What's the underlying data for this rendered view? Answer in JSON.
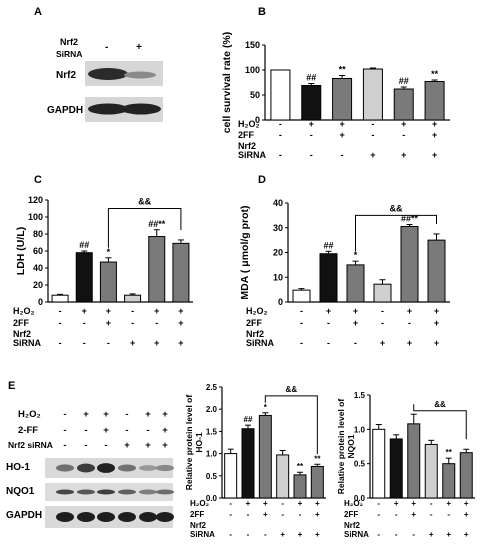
{
  "colors": {
    "white": "#ffffff",
    "black": "#111111",
    "dark_gray": "#7a7a7a",
    "light_gray": "#cfcfcf",
    "mid_gray": "#8c8c8c"
  },
  "blot_a": {
    "label": "A",
    "header": {
      "line1": "Nrf2",
      "line2": "SiRNA",
      "minus": "-",
      "plus": "+"
    },
    "rows": [
      "Nrf2",
      "GAPDH"
    ]
  },
  "blot_e": {
    "label": "E",
    "conditions": [
      {
        "name": "H₂O₂",
        "signs": [
          "-",
          "+",
          "+",
          "-",
          "+",
          "+"
        ]
      },
      {
        "name": "2-FF",
        "signs": [
          "-",
          "-",
          "+",
          "-",
          "-",
          "+"
        ]
      },
      {
        "name": "Nrf2 siRNA",
        "signs": [
          "-",
          "-",
          "-",
          "+",
          "+",
          "+"
        ]
      }
    ],
    "rows": [
      "HO-1",
      "NQO1",
      "GAPDH"
    ]
  },
  "chart_data": [
    {
      "panel": "B",
      "type": "bar",
      "categories": [
        "1",
        "2",
        "3",
        "4",
        "5",
        "6"
      ],
      "values": [
        100,
        69,
        83,
        102,
        62,
        77
      ],
      "errors": [
        0,
        4,
        6,
        2,
        4,
        3
      ],
      "sig": [
        "",
        "##",
        "**",
        "",
        "##",
        "**"
      ],
      "ylabel": "cell survival rate (%)",
      "ylim": [
        0,
        150
      ],
      "yticks": [
        "0",
        "50",
        "100",
        "150"
      ],
      "conditions": [
        {
          "name": "H₂O₂",
          "signs": [
            "-",
            "+",
            "+",
            "-",
            "+",
            "+"
          ]
        },
        {
          "name": "2FF",
          "signs": [
            "-",
            "-",
            "+",
            "-",
            "-",
            "+"
          ]
        },
        {
          "name": "Nrf2",
          "signs": []
        },
        {
          "name": "SiRNA",
          "signs": [
            "-",
            "-",
            "-",
            "+",
            "+",
            "+"
          ]
        }
      ],
      "bar_colors": [
        "#ffffff",
        "#111111",
        "#7a7a7a",
        "#cfcfcf",
        "#7a7a7a",
        "#7a7a7a"
      ]
    },
    {
      "panel": "C",
      "type": "bar",
      "categories": [
        "1",
        "2",
        "3",
        "4",
        "5",
        "6"
      ],
      "values": [
        8,
        58,
        47,
        8,
        77,
        69
      ],
      "errors": [
        1,
        2,
        5,
        1.5,
        8,
        4
      ],
      "sig": [
        "",
        "##",
        "*",
        "",
        "##**",
        ""
      ],
      "bracket": {
        "from": 2,
        "to": 5,
        "label": "&&",
        "y": 110
      },
      "ylabel": "LDH  (U/L)",
      "ylim": [
        0,
        120
      ],
      "yticks": [
        "0",
        "20",
        "40",
        "60",
        "80",
        "100",
        "120"
      ],
      "conditions": [
        {
          "name": "H₂O₂",
          "signs": [
            "-",
            "+",
            "+",
            "-",
            "+",
            "+"
          ]
        },
        {
          "name": "2FF",
          "signs": [
            "-",
            "-",
            "+",
            "-",
            "-",
            "+"
          ]
        },
        {
          "name": "Nrf2",
          "signs": []
        },
        {
          "name": "SiRNA",
          "signs": [
            "-",
            "-",
            "-",
            "+",
            "+",
            "+"
          ]
        }
      ],
      "bar_colors": [
        "#ffffff",
        "#111111",
        "#7a7a7a",
        "#cfcfcf",
        "#7a7a7a",
        "#7a7a7a"
      ]
    },
    {
      "panel": "D",
      "type": "bar",
      "categories": [
        "1",
        "2",
        "3",
        "4",
        "5",
        "6"
      ],
      "values": [
        4.8,
        19.5,
        15,
        7.2,
        30.5,
        25
      ],
      "errors": [
        0.6,
        1.0,
        1.5,
        1.8,
        0.8,
        2.5
      ],
      "sig": [
        "",
        "##",
        "*",
        "",
        "##**",
        ""
      ],
      "bracket": {
        "from": 2,
        "to": 5,
        "label": "&&",
        "y": 35
      },
      "ylabel": "MDA ( μmol/g prot)",
      "ylim": [
        0,
        40
      ],
      "yticks": [
        "0",
        "10",
        "20",
        "30",
        "40"
      ],
      "conditions": [
        {
          "name": "H₂O₂",
          "signs": [
            "-",
            "+",
            "+",
            "-",
            "+",
            "+"
          ]
        },
        {
          "name": "2FF",
          "signs": [
            "-",
            "-",
            "+",
            "-",
            "-",
            "+"
          ]
        },
        {
          "name": "Nrf2",
          "signs": []
        },
        {
          "name": "SiRNA",
          "signs": [
            "-",
            "-",
            "-",
            "+",
            "+",
            "+"
          ]
        }
      ],
      "bar_colors": [
        "#ffffff",
        "#111111",
        "#7a7a7a",
        "#cfcfcf",
        "#7a7a7a",
        "#7a7a7a"
      ]
    },
    {
      "panel": "E-HO1",
      "type": "bar",
      "categories": [
        "1",
        "2",
        "3",
        "4",
        "5",
        "6"
      ],
      "values": [
        1.0,
        1.56,
        1.86,
        0.97,
        0.52,
        0.71
      ],
      "errors": [
        0.1,
        0.08,
        0.06,
        0.1,
        0.06,
        0.05
      ],
      "sig": [
        "",
        "##",
        "*",
        "",
        "**",
        "**"
      ],
      "bracket": {
        "from": 2,
        "to": 5,
        "label": "&&",
        "y": 2.3
      },
      "ylabel": "Relative protein level of HO-1",
      "ylim": [
        0,
        2.5
      ],
      "yticks": [
        "0.0",
        "0.5",
        "1.0",
        "1.5",
        "2.0",
        "2.5"
      ],
      "conditions": [
        {
          "name": "H₂O₂",
          "signs": [
            "-",
            "+",
            "+",
            "-",
            "+",
            "+"
          ]
        },
        {
          "name": "2FF",
          "signs": [
            "-",
            "-",
            "+",
            "-",
            "-",
            "+"
          ]
        },
        {
          "name": "Nrf2",
          "signs": []
        },
        {
          "name": "SiRNA",
          "signs": [
            "-",
            "-",
            "-",
            "+",
            "+",
            "+"
          ]
        }
      ],
      "bar_colors": [
        "#ffffff",
        "#111111",
        "#7a7a7a",
        "#cfcfcf",
        "#7a7a7a",
        "#7a7a7a"
      ]
    },
    {
      "panel": "E-NQO1",
      "type": "bar",
      "categories": [
        "1",
        "2",
        "3",
        "4",
        "5",
        "6"
      ],
      "values": [
        1.0,
        0.86,
        1.08,
        0.78,
        0.5,
        0.66
      ],
      "errors": [
        0.07,
        0.06,
        0.14,
        0.06,
        0.08,
        0.05
      ],
      "sig": [
        "",
        "",
        "",
        "",
        "**",
        ""
      ],
      "bracket": {
        "from": 2,
        "to": 5,
        "label": "&&",
        "y": 1.27
      },
      "ylabel": "Relative protein level of NQO1",
      "ylim": [
        0,
        1.5
      ],
      "yticks": [
        "0.0",
        "0.5",
        "1.0",
        "1.5"
      ],
      "conditions": [
        {
          "name": "H₂O₂",
          "signs": [
            "-",
            "+",
            "+",
            "-",
            "+",
            "+"
          ]
        },
        {
          "name": "2FF",
          "signs": [
            "-",
            "-",
            "+",
            "-",
            "-",
            "+"
          ]
        },
        {
          "name": "Nrf2",
          "signs": []
        },
        {
          "name": "SiRNA",
          "signs": [
            "-",
            "-",
            "-",
            "+",
            "+",
            "+"
          ]
        }
      ],
      "bar_colors": [
        "#ffffff",
        "#111111",
        "#7a7a7a",
        "#cfcfcf",
        "#7a7a7a",
        "#7a7a7a"
      ]
    }
  ]
}
